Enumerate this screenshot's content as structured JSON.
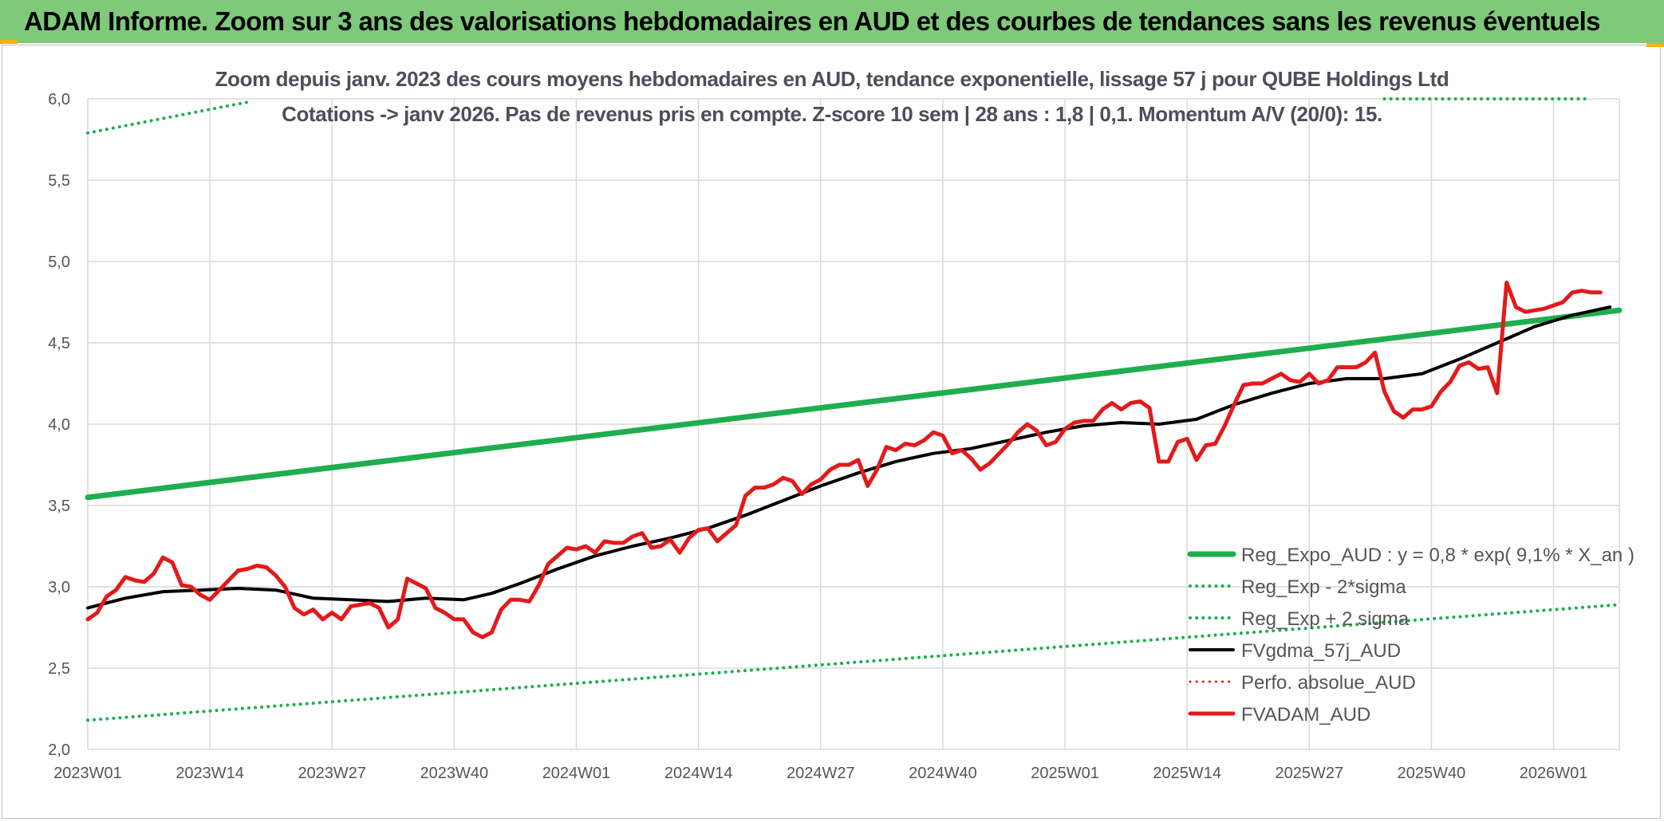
{
  "header": {
    "title": "ADAM Informe. Zoom sur 3 ans des valorisations hebdomadaires en AUD et des courbes de tendances sans les revenus éventuels"
  },
  "chart_data": {
    "type": "line",
    "title": "Zoom depuis janv. 2023 des cours moyens hebdomadaires en AUD, tendance exponentielle, lissage 57 j pour QUBE Holdings Ltd",
    "subtitle": "Cotations -> janv 2026. Pas de revenus pris en compte. Z-score 10 sem | 28 ans : 1,8 | 0,1. Momentum A/V (20/0): 15.",
    "ylim": [
      2.0,
      6.0
    ],
    "yticks": [
      "2,0",
      "2,5",
      "3,0",
      "3,5",
      "4,0",
      "4,5",
      "5,0",
      "5,5",
      "6,0"
    ],
    "xlim": [
      0,
      163
    ],
    "xticks": [
      {
        "label": "2023W01",
        "week": 0
      },
      {
        "label": "2023W14",
        "week": 13
      },
      {
        "label": "2023W27",
        "week": 26
      },
      {
        "label": "2023W40",
        "week": 39
      },
      {
        "label": "2024W01",
        "week": 52
      },
      {
        "label": "2024W14",
        "week": 65
      },
      {
        "label": "2024W27",
        "week": 78
      },
      {
        "label": "2024W40",
        "week": 91
      },
      {
        "label": "2025W01",
        "week": 104
      },
      {
        "label": "2025W14",
        "week": 117
      },
      {
        "label": "2025W27",
        "week": 130
      },
      {
        "label": "2025W40",
        "week": 143
      },
      {
        "label": "2026W01",
        "week": 156
      }
    ],
    "grid": true,
    "legend_position": "bottom-right",
    "series": [
      {
        "name": "Reg_Expo_AUD : y = 0,8 * exp( 9,1% *  X_an )",
        "color": "#1fae4f",
        "style": "solid",
        "width": 7,
        "points": [
          [
            0,
            3.55
          ],
          [
            163,
            4.7
          ]
        ]
      },
      {
        "name": "Reg_Exp - 2*sigma",
        "color": "#1fae4f",
        "style": "dotted",
        "width": 4,
        "points": [
          [
            0,
            2.18
          ],
          [
            163,
            2.89
          ]
        ]
      },
      {
        "name": "Reg_Exp + 2 sigma",
        "color": "#1fae4f",
        "style": "dotted",
        "width": 4,
        "points": [
          [
            0,
            5.79
          ],
          [
            17,
            5.98
          ]
        ],
        "points_b": [
          [
            138,
            6.0
          ],
          [
            160,
            6.0
          ]
        ]
      },
      {
        "name": "FVgdma_57j_AUD",
        "color": "#000000",
        "style": "solid",
        "width": 4,
        "points": [
          [
            0,
            2.87
          ],
          [
            4,
            2.93
          ],
          [
            8,
            2.97
          ],
          [
            12,
            2.98
          ],
          [
            16,
            2.99
          ],
          [
            20,
            2.98
          ],
          [
            24,
            2.93
          ],
          [
            28,
            2.92
          ],
          [
            32,
            2.91
          ],
          [
            36,
            2.93
          ],
          [
            40,
            2.92
          ],
          [
            43,
            2.96
          ],
          [
            46,
            3.02
          ],
          [
            50,
            3.11
          ],
          [
            54,
            3.19
          ],
          [
            58,
            3.25
          ],
          [
            62,
            3.3
          ],
          [
            66,
            3.36
          ],
          [
            70,
            3.44
          ],
          [
            74,
            3.53
          ],
          [
            78,
            3.62
          ],
          [
            82,
            3.7
          ],
          [
            86,
            3.77
          ],
          [
            90,
            3.82
          ],
          [
            94,
            3.85
          ],
          [
            98,
            3.9
          ],
          [
            102,
            3.95
          ],
          [
            106,
            3.99
          ],
          [
            110,
            4.01
          ],
          [
            114,
            4.0
          ],
          [
            118,
            4.03
          ],
          [
            122,
            4.12
          ],
          [
            126,
            4.19
          ],
          [
            130,
            4.25
          ],
          [
            134,
            4.28
          ],
          [
            138,
            4.28
          ],
          [
            142,
            4.31
          ],
          [
            146,
            4.4
          ],
          [
            150,
            4.5
          ],
          [
            154,
            4.6
          ],
          [
            158,
            4.67
          ],
          [
            162,
            4.72
          ]
        ]
      },
      {
        "name": "Perfo. absolue_AUD",
        "color": "#e31a1c",
        "style": "dotted",
        "width": 3,
        "points": []
      },
      {
        "name": "FVADAM_AUD",
        "color": "#e31a1c",
        "style": "solid",
        "width": 5,
        "points": [
          [
            0,
            2.8
          ],
          [
            1,
            2.84
          ],
          [
            2,
            2.94
          ],
          [
            3,
            2.98
          ],
          [
            4,
            3.06
          ],
          [
            5,
            3.04
          ],
          [
            6,
            3.03
          ],
          [
            7,
            3.08
          ],
          [
            8,
            3.18
          ],
          [
            9,
            3.15
          ],
          [
            10,
            3.01
          ],
          [
            11,
            3.0
          ],
          [
            12,
            2.95
          ],
          [
            13,
            2.92
          ],
          [
            14,
            2.98
          ],
          [
            15,
            3.04
          ],
          [
            16,
            3.1
          ],
          [
            17,
            3.11
          ],
          [
            18,
            3.13
          ],
          [
            19,
            3.12
          ],
          [
            20,
            3.07
          ],
          [
            21,
            3.0
          ],
          [
            22,
            2.87
          ],
          [
            23,
            2.83
          ],
          [
            24,
            2.86
          ],
          [
            25,
            2.8
          ],
          [
            26,
            2.84
          ],
          [
            27,
            2.8
          ],
          [
            28,
            2.88
          ],
          [
            29,
            2.89
          ],
          [
            30,
            2.9
          ],
          [
            31,
            2.87
          ],
          [
            32,
            2.75
          ],
          [
            33,
            2.8
          ],
          [
            34,
            3.05
          ],
          [
            35,
            3.02
          ],
          [
            36,
            2.99
          ],
          [
            37,
            2.87
          ],
          [
            38,
            2.84
          ],
          [
            39,
            2.8
          ],
          [
            40,
            2.8
          ],
          [
            41,
            2.72
          ],
          [
            42,
            2.69
          ],
          [
            43,
            2.72
          ],
          [
            44,
            2.86
          ],
          [
            45,
            2.92
          ],
          [
            46,
            2.92
          ],
          [
            47,
            2.91
          ],
          [
            48,
            3.01
          ],
          [
            49,
            3.14
          ],
          [
            50,
            3.19
          ],
          [
            51,
            3.24
          ],
          [
            52,
            3.23
          ],
          [
            53,
            3.25
          ],
          [
            54,
            3.21
          ],
          [
            55,
            3.28
          ],
          [
            56,
            3.27
          ],
          [
            57,
            3.27
          ],
          [
            58,
            3.31
          ],
          [
            59,
            3.33
          ],
          [
            60,
            3.24
          ],
          [
            61,
            3.25
          ],
          [
            62,
            3.29
          ],
          [
            63,
            3.21
          ],
          [
            64,
            3.3
          ],
          [
            65,
            3.35
          ],
          [
            66,
            3.36
          ],
          [
            67,
            3.28
          ],
          [
            68,
            3.33
          ],
          [
            69,
            3.38
          ],
          [
            70,
            3.56
          ],
          [
            71,
            3.61
          ],
          [
            72,
            3.61
          ],
          [
            73,
            3.63
          ],
          [
            74,
            3.67
          ],
          [
            75,
            3.65
          ],
          [
            76,
            3.57
          ],
          [
            77,
            3.63
          ],
          [
            78,
            3.66
          ],
          [
            79,
            3.72
          ],
          [
            80,
            3.75
          ],
          [
            81,
            3.75
          ],
          [
            82,
            3.78
          ],
          [
            83,
            3.62
          ],
          [
            84,
            3.72
          ],
          [
            85,
            3.86
          ],
          [
            86,
            3.84
          ],
          [
            87,
            3.88
          ],
          [
            88,
            3.87
          ],
          [
            89,
            3.9
          ],
          [
            90,
            3.95
          ],
          [
            91,
            3.93
          ],
          [
            92,
            3.82
          ],
          [
            93,
            3.84
          ],
          [
            94,
            3.79
          ],
          [
            95,
            3.72
          ],
          [
            96,
            3.76
          ],
          [
            97,
            3.82
          ],
          [
            98,
            3.88
          ],
          [
            99,
            3.95
          ],
          [
            100,
            4.0
          ],
          [
            101,
            3.96
          ],
          [
            102,
            3.87
          ],
          [
            103,
            3.89
          ],
          [
            104,
            3.97
          ],
          [
            105,
            4.01
          ],
          [
            106,
            4.02
          ],
          [
            107,
            4.02
          ],
          [
            108,
            4.09
          ],
          [
            109,
            4.13
          ],
          [
            110,
            4.09
          ],
          [
            111,
            4.13
          ],
          [
            112,
            4.14
          ],
          [
            113,
            4.1
          ],
          [
            114,
            3.77
          ],
          [
            115,
            3.77
          ],
          [
            116,
            3.89
          ],
          [
            117,
            3.91
          ],
          [
            118,
            3.78
          ],
          [
            119,
            3.87
          ],
          [
            120,
            3.88
          ],
          [
            121,
            3.99
          ],
          [
            122,
            4.12
          ],
          [
            123,
            4.24
          ],
          [
            124,
            4.25
          ],
          [
            125,
            4.25
          ],
          [
            126,
            4.28
          ],
          [
            127,
            4.31
          ],
          [
            128,
            4.27
          ],
          [
            129,
            4.26
          ],
          [
            130,
            4.31
          ],
          [
            131,
            4.25
          ],
          [
            132,
            4.27
          ],
          [
            133,
            4.35
          ],
          [
            134,
            4.35
          ],
          [
            135,
            4.35
          ],
          [
            136,
            4.38
          ],
          [
            137,
            4.44
          ],
          [
            138,
            4.2
          ],
          [
            139,
            4.08
          ],
          [
            140,
            4.04
          ],
          [
            141,
            4.09
          ],
          [
            142,
            4.09
          ],
          [
            143,
            4.11
          ],
          [
            144,
            4.2
          ],
          [
            145,
            4.26
          ],
          [
            146,
            4.36
          ],
          [
            147,
            4.38
          ],
          [
            148,
            4.34
          ],
          [
            149,
            4.35
          ],
          [
            150,
            4.19
          ],
          [
            151,
            4.87
          ],
          [
            152,
            4.72
          ],
          [
            153,
            4.69
          ],
          [
            154,
            4.7
          ],
          [
            155,
            4.71
          ],
          [
            156,
            4.73
          ],
          [
            157,
            4.75
          ],
          [
            158,
            4.81
          ],
          [
            159,
            4.82
          ],
          [
            160,
            4.81
          ],
          [
            161,
            4.81
          ]
        ]
      }
    ]
  }
}
